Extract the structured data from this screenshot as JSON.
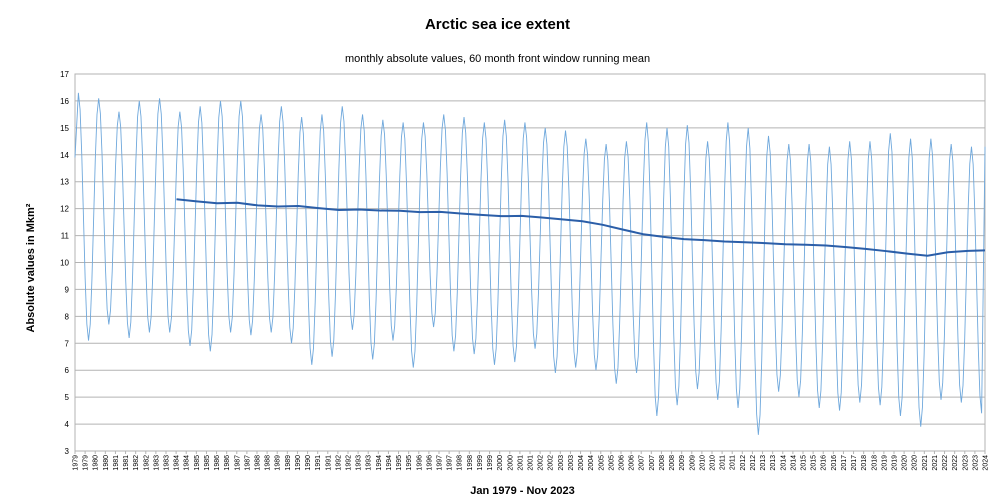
{
  "chart_data": {
    "type": "line",
    "title": "Arctic sea ice extent",
    "subtitle": "monthly absolute values, 60 month front window running mean",
    "xlabel": "Jan 1979 - Nov 2023",
    "ylabel": "Absolute values in Mkm²",
    "ylim": [
      3,
      17
    ],
    "yticks": [
      3,
      4,
      5,
      6,
      7,
      8,
      9,
      10,
      11,
      12,
      13,
      14,
      15,
      16,
      17
    ],
    "grid": true,
    "x_start": "1979-01",
    "x_end": "2023-11",
    "x_tick_labels": [
      "1979",
      "1979",
      "1980",
      "1980",
      "1981",
      "1981",
      "1982",
      "1982",
      "1983",
      "1983",
      "1984",
      "1984",
      "1985",
      "1985",
      "1986",
      "1986",
      "1987",
      "1987",
      "1988",
      "1988",
      "1989",
      "1989",
      "1990",
      "1990",
      "1991",
      "1991",
      "1992",
      "1992",
      "1993",
      "1993",
      "1994",
      "1994",
      "1995",
      "1995",
      "1996",
      "1996",
      "1997",
      "1997",
      "1998",
      "1998",
      "1999",
      "1999",
      "2000",
      "2000",
      "2001",
      "2001",
      "2002",
      "2002",
      "2003",
      "2003",
      "2004",
      "2004",
      "2005",
      "2005",
      "2006",
      "2006",
      "2007",
      "2007",
      "2008",
      "2008",
      "2009",
      "2009",
      "2010",
      "2010",
      "2011",
      "2011",
      "2012",
      "2012",
      "2013",
      "2013",
      "2014",
      "2014",
      "2015",
      "2015",
      "2016",
      "2016",
      "2017",
      "2017",
      "2018",
      "2018",
      "2019",
      "2019",
      "2020",
      "2020",
      "2021",
      "2021",
      "2022",
      "2022",
      "2023",
      "2023",
      "2024"
    ],
    "series": [
      {
        "color": "#6fa8dc",
        "annual_max": [
          16.3,
          16.1,
          15.6,
          16.0,
          16.1,
          15.6,
          15.8,
          16.0,
          16.0,
          15.5,
          15.8,
          15.4,
          15.5,
          15.8,
          15.5,
          15.3,
          15.2,
          15.2,
          15.5,
          15.4,
          15.2,
          15.3,
          15.2,
          15.0,
          14.9,
          14.6,
          14.4,
          14.5,
          15.2,
          15.0,
          15.1,
          14.5,
          15.2,
          15.0,
          14.7,
          14.4,
          14.4,
          14.3,
          14.5,
          14.5,
          14.8,
          14.6,
          14.6,
          14.4,
          14.3
        ],
        "annual_min": [
          7.1,
          7.7,
          7.2,
          7.4,
          7.4,
          6.9,
          6.7,
          7.4,
          7.3,
          7.4,
          7.0,
          6.2,
          6.5,
          7.5,
          6.4,
          7.1,
          6.1,
          7.6,
          6.7,
          6.6,
          6.2,
          6.3,
          6.8,
          5.9,
          6.1,
          6.0,
          5.5,
          5.9,
          4.3,
          4.7,
          5.3,
          4.9,
          4.6,
          3.6,
          5.2,
          5.0,
          4.6,
          4.5,
          4.8,
          4.7,
          4.3,
          3.9,
          4.9,
          4.8,
          4.4
        ],
        "last_value": 14.3
      },
      {
        "color": "#2b5ea8",
        "start": "1984-01",
        "annual_points": [
          [
            "1984-01",
            12.35
          ],
          [
            "1985-01",
            12.27
          ],
          [
            "1986-01",
            12.2
          ],
          [
            "1987-01",
            12.22
          ],
          [
            "1988-01",
            12.12
          ],
          [
            "1989-01",
            12.08
          ],
          [
            "1990-01",
            12.1
          ],
          [
            "1991-01",
            12.02
          ],
          [
            "1992-01",
            11.95
          ],
          [
            "1993-01",
            11.97
          ],
          [
            "1994-01",
            11.93
          ],
          [
            "1995-01",
            11.92
          ],
          [
            "1996-01",
            11.87
          ],
          [
            "1997-01",
            11.88
          ],
          [
            "1998-01",
            11.82
          ],
          [
            "1999-01",
            11.77
          ],
          [
            "2000-01",
            11.72
          ],
          [
            "2001-01",
            11.73
          ],
          [
            "2002-01",
            11.67
          ],
          [
            "2003-01",
            11.6
          ],
          [
            "2004-01",
            11.53
          ],
          [
            "2005-01",
            11.4
          ],
          [
            "2006-01",
            11.22
          ],
          [
            "2007-01",
            11.05
          ],
          [
            "2008-01",
            10.95
          ],
          [
            "2009-01",
            10.87
          ],
          [
            "2010-01",
            10.83
          ],
          [
            "2011-01",
            10.78
          ],
          [
            "2012-01",
            10.75
          ],
          [
            "2013-01",
            10.72
          ],
          [
            "2014-01",
            10.68
          ],
          [
            "2015-01",
            10.66
          ],
          [
            "2016-01",
            10.63
          ],
          [
            "2017-01",
            10.57
          ],
          [
            "2018-01",
            10.5
          ],
          [
            "2019-01",
            10.42
          ],
          [
            "2020-01",
            10.33
          ],
          [
            "2021-01",
            10.25
          ],
          [
            "2022-01",
            10.38
          ],
          [
            "2023-01",
            10.43
          ],
          [
            "2023-11",
            10.45
          ]
        ]
      }
    ]
  }
}
